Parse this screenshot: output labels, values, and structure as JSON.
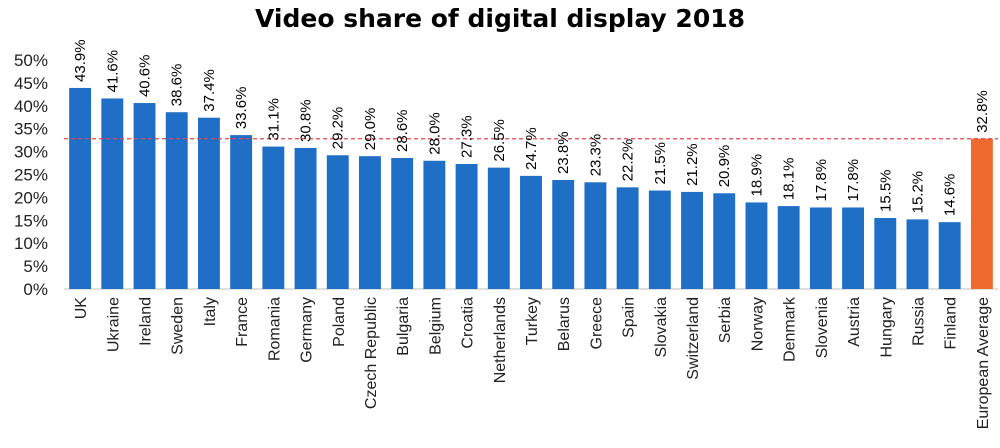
{
  "chart_data": {
    "type": "bar",
    "title": "Video share of digital display 2018",
    "xlabel": "",
    "ylabel": "",
    "ylim": [
      0,
      50
    ],
    "yticks": [
      "0%",
      "5%",
      "10%",
      "15%",
      "20%",
      "25%",
      "30%",
      "35%",
      "40%",
      "45%",
      "50%"
    ],
    "categories": [
      "UK",
      "Ukraine",
      "Ireland",
      "Sweden",
      "Italy",
      "France",
      "Romania",
      "Germany",
      "Poland",
      "Czech Republic",
      "Bulgaria",
      "Belgium",
      "Croatia",
      "Netherlands",
      "Turkey",
      "Belarus",
      "Greece",
      "Spain",
      "Slovakia",
      "Switzerland",
      "Serbia",
      "Norway",
      "Denmark",
      "Slovenia",
      "Austria",
      "Hungary",
      "Russia",
      "Finland",
      "European Average"
    ],
    "values": [
      43.9,
      41.6,
      40.6,
      38.6,
      37.4,
      33.6,
      31.1,
      30.8,
      29.2,
      29.0,
      28.6,
      28.0,
      27.3,
      26.5,
      24.7,
      23.8,
      23.3,
      22.2,
      21.5,
      21.2,
      20.9,
      18.9,
      18.1,
      17.8,
      17.8,
      15.5,
      15.2,
      14.6,
      32.8
    ],
    "data_labels": [
      "43.9%",
      "41.6%",
      "40.6%",
      "38.6%",
      "37.4%",
      "33.6%",
      "31.1%",
      "30.8%",
      "29.2%",
      "29.0%",
      "28.6%",
      "28.0%",
      "27.3%",
      "26.5%",
      "24.7%",
      "23.8%",
      "23.3%",
      "22.2%",
      "21.5%",
      "21.2%",
      "20.9%",
      "18.9%",
      "18.1%",
      "17.8%",
      "17.8%",
      "15.5%",
      "15.2%",
      "14.6%",
      "32.8%"
    ],
    "highlight_category": "European Average",
    "reference_line": {
      "value": 32.8,
      "style": "dashed",
      "color": "#e8434f"
    },
    "colors": {
      "bar": "#1f6fc6",
      "highlight": "#ef6a2f"
    },
    "grid": false,
    "legend": "none"
  }
}
